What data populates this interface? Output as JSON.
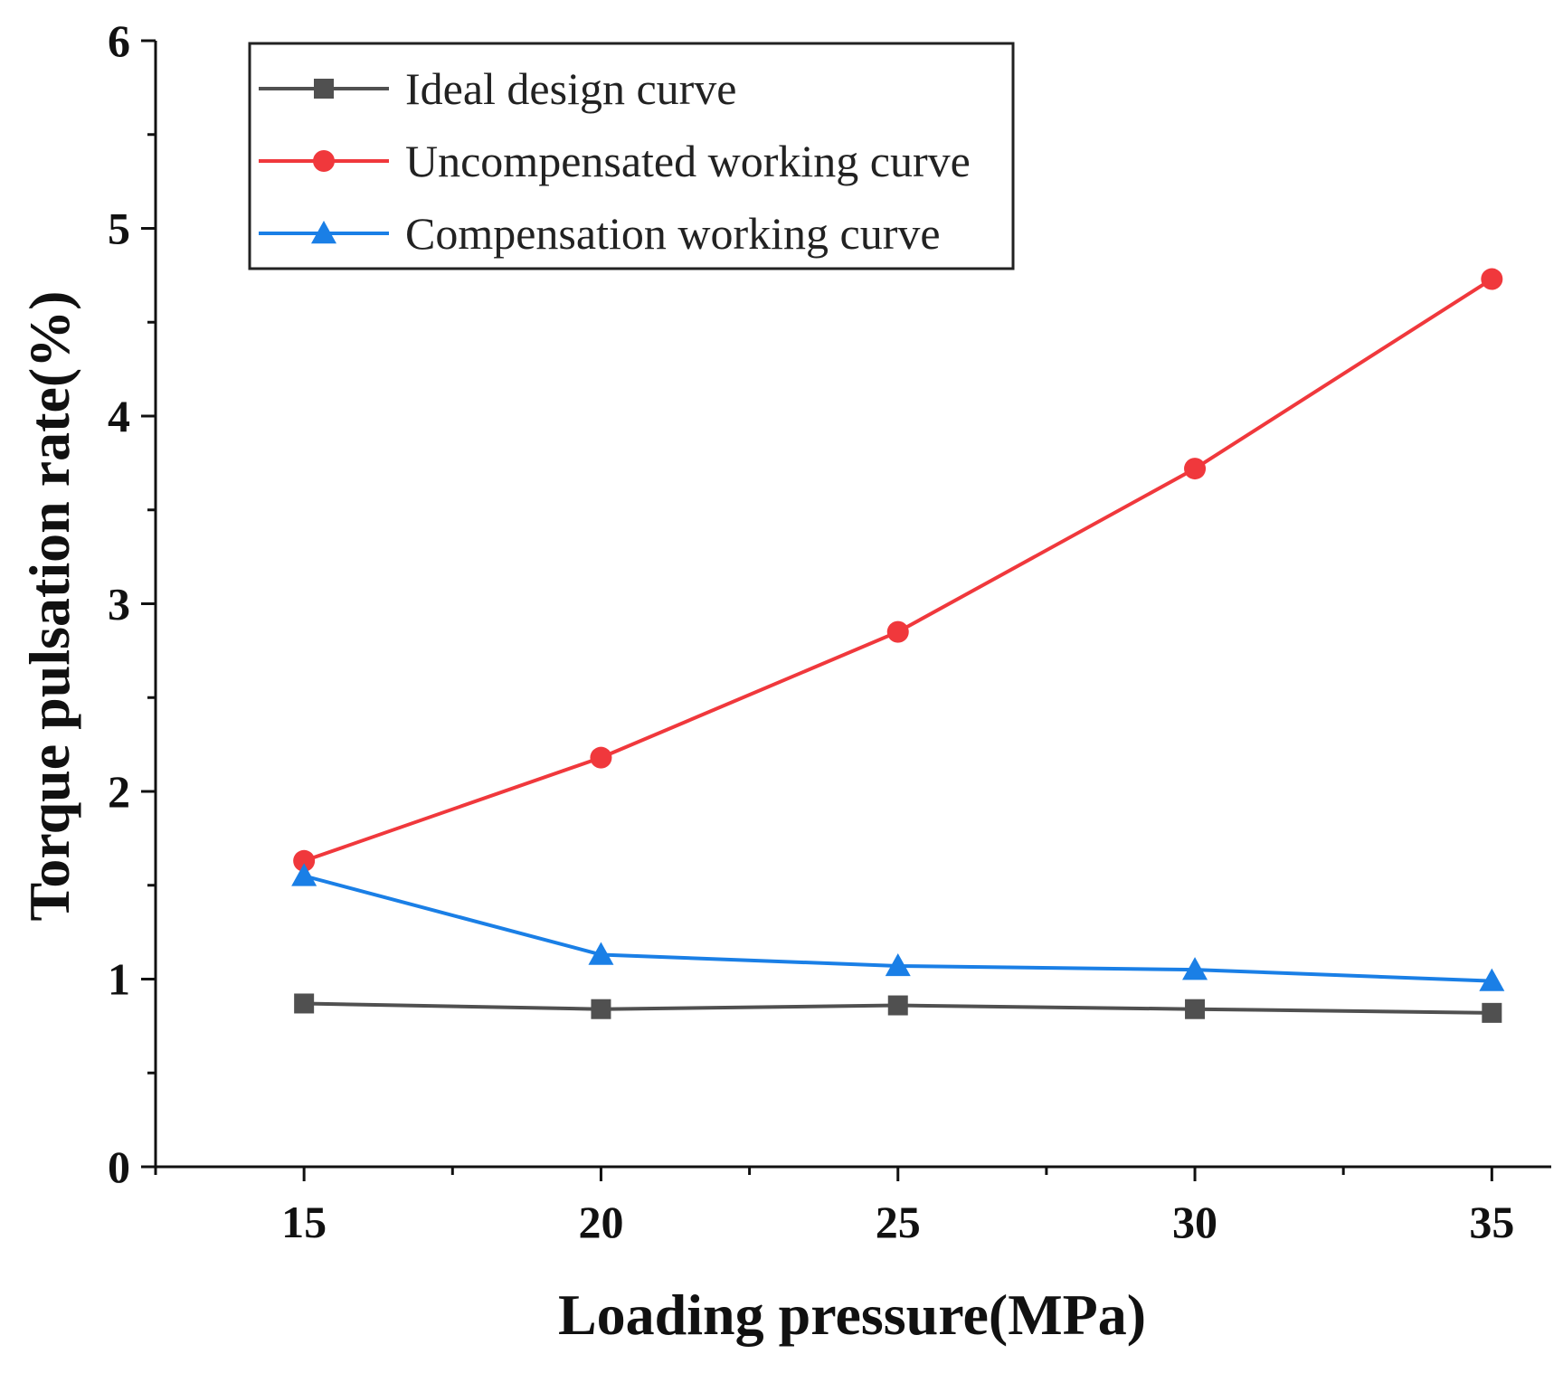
{
  "chart_data": {
    "type": "line",
    "title": "",
    "xlabel": "Loading pressure(MPa)",
    "ylabel": "Torque pulsation rate(%)",
    "x": [
      15,
      20,
      25,
      30,
      35
    ],
    "xlim": [
      12.5,
      36
    ],
    "ylim": [
      0,
      6
    ],
    "xticks": [
      15,
      20,
      25,
      30,
      35
    ],
    "yticks": [
      0,
      1,
      2,
      3,
      4,
      5,
      6
    ],
    "grid": false,
    "legend_position": "top-left",
    "series": [
      {
        "name": "Ideal design curve",
        "color": "#505050",
        "marker": "square",
        "values": [
          0.87,
          0.84,
          0.86,
          0.84,
          0.82
        ]
      },
      {
        "name": "Uncompensated working curve",
        "color": "#f0383c",
        "marker": "circle",
        "values": [
          1.63,
          2.18,
          2.85,
          3.72,
          4.73
        ]
      },
      {
        "name": "Compensation working curve",
        "color": "#1a7fe6",
        "marker": "triangle",
        "values": [
          1.55,
          1.13,
          1.07,
          1.05,
          0.99
        ]
      }
    ]
  }
}
